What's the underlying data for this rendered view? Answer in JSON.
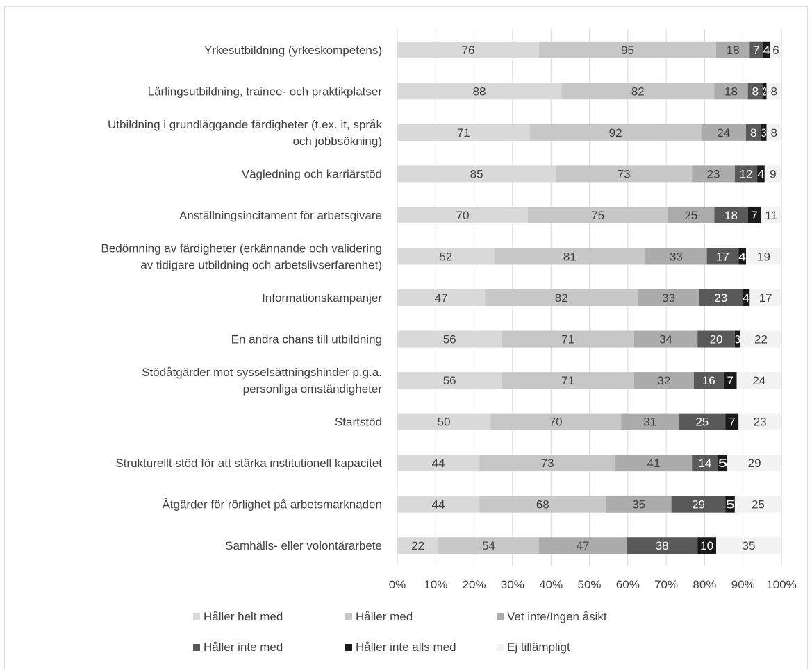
{
  "chart_data": {
    "type": "bar",
    "orientation": "horizontal",
    "stacked": "percent",
    "title": "",
    "xlabel": "",
    "ylabel": "",
    "xlim": [
      0,
      100
    ],
    "x_ticks": [
      "0%",
      "10%",
      "20%",
      "30%",
      "40%",
      "50%",
      "60%",
      "70%",
      "80%",
      "90%",
      "100%"
    ],
    "grid": "vertical",
    "legend_position": "bottom",
    "categories": [
      [
        "Yrkesutbildning (yrkeskompetens)"
      ],
      [
        "Lärlingsutbildning, trainee- och praktikplatser"
      ],
      [
        "Utbildning i grundläggande färdigheter (t.ex. it, språk",
        "och jobbsökning)"
      ],
      [
        "Vägledning och karriärstöd"
      ],
      [
        "Anställningsincitament för arbetsgivare"
      ],
      [
        "Bedömning av färdigheter (erkännande och validering",
        "av tidigare utbildning och arbetslivserfarenhet)"
      ],
      [
        "Informationskampanjer"
      ],
      [
        "En andra chans till utbildning"
      ],
      [
        "Stödåtgärder mot sysselsättningshinder p.g.a.",
        "personliga omständigheter"
      ],
      [
        "Startstöd"
      ],
      [
        "Strukturellt stöd för att stärka institutionell kapacitet"
      ],
      [
        "Åtgärder för rörlighet på arbetsmarknaden"
      ],
      [
        "Samhälls- eller volontärarbete"
      ]
    ],
    "series": [
      {
        "name": "Håller helt med",
        "color": "#d9d9d9",
        "label_color": "#404040",
        "values": [
          76,
          88,
          71,
          85,
          70,
          52,
          47,
          56,
          56,
          50,
          44,
          44,
          22
        ]
      },
      {
        "name": "Håller med",
        "color": "#c7c7c7",
        "label_color": "#404040",
        "values": [
          95,
          82,
          92,
          73,
          75,
          81,
          82,
          71,
          71,
          70,
          73,
          68,
          54
        ]
      },
      {
        "name": "Vet inte/Ingen åsikt",
        "color": "#ababab",
        "label_color": "#404040",
        "values": [
          18,
          18,
          24,
          23,
          25,
          33,
          33,
          34,
          32,
          31,
          41,
          35,
          47
        ]
      },
      {
        "name": "Håller inte med",
        "color": "#595959",
        "label_color": "#ffffff",
        "values": [
          7,
          8,
          8,
          12,
          18,
          17,
          23,
          20,
          16,
          25,
          14,
          29,
          38
        ]
      },
      {
        "name": "Håller inte alls med",
        "color": "#1a1a1a",
        "label_color": "#ffffff",
        "values": [
          4,
          2,
          3,
          4,
          7,
          4,
          4,
          3,
          7,
          7,
          5,
          5,
          10
        ]
      },
      {
        "name": "Ej tillämpligt",
        "color": "#f2f2f2",
        "label_color": "#404040",
        "values": [
          6,
          8,
          8,
          9,
          11,
          19,
          17,
          22,
          24,
          23,
          29,
          25,
          35
        ]
      }
    ]
  }
}
